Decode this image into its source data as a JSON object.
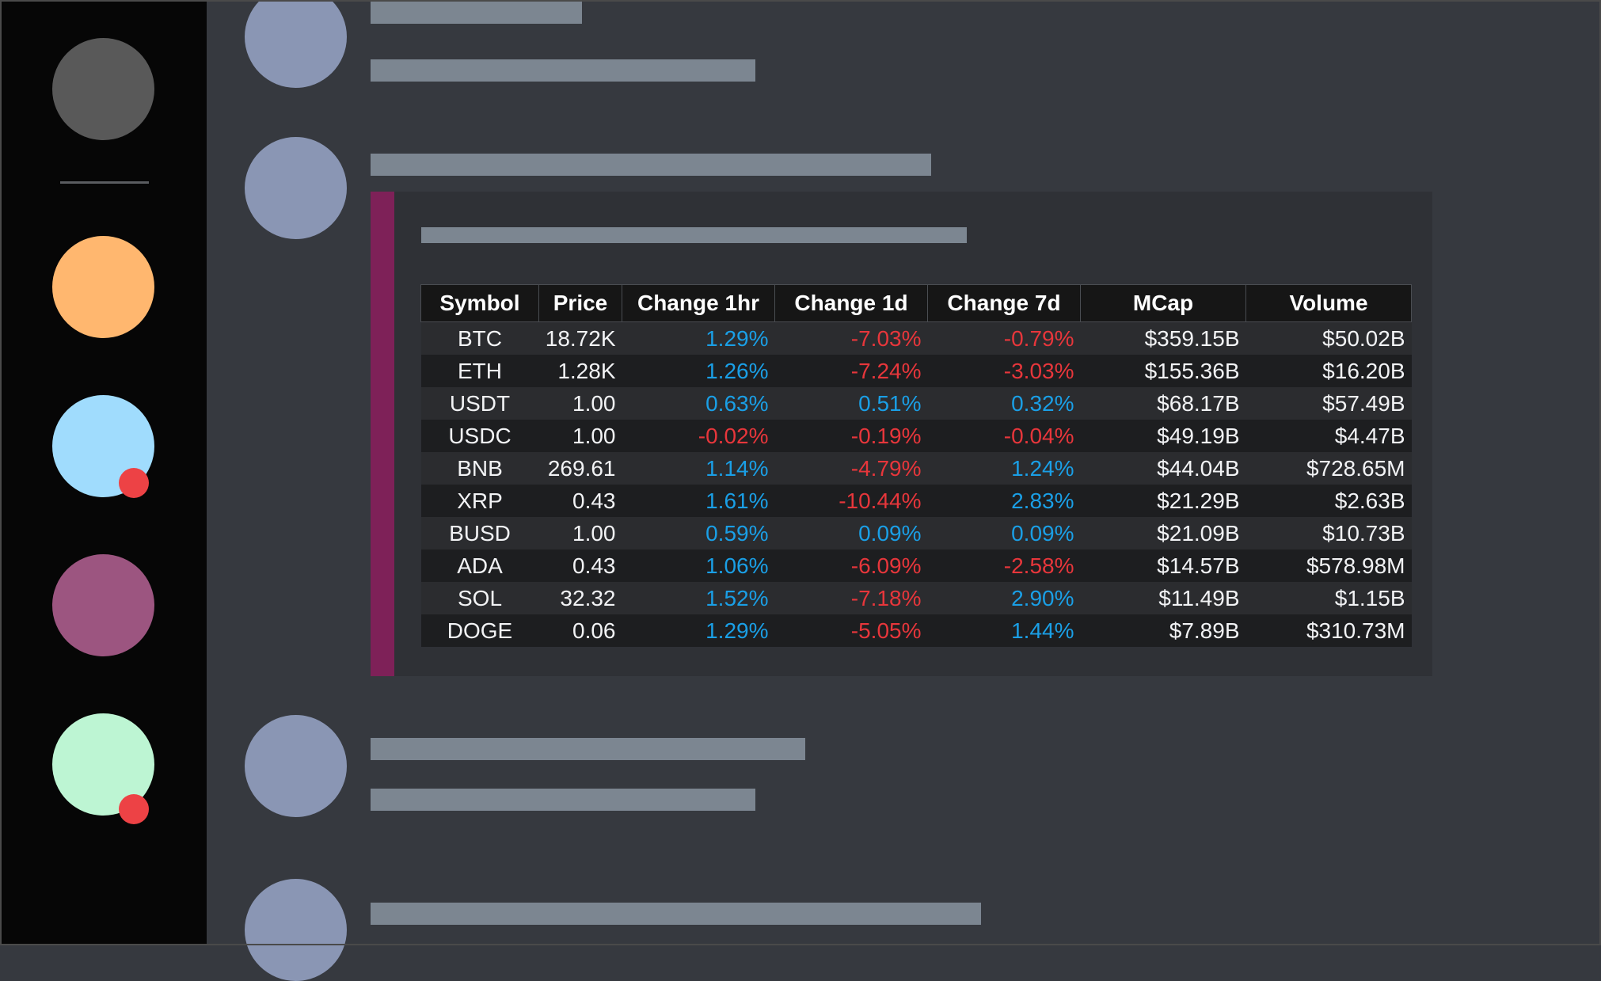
{
  "servers": [
    {
      "name": "server-home",
      "color": "#595959",
      "badge": false
    },
    {
      "name": "server-orange",
      "color": "#ffb76f",
      "badge": false
    },
    {
      "name": "server-blue",
      "color": "#a0dcfd",
      "badge": true
    },
    {
      "name": "server-purple",
      "color": "#9c5580",
      "badge": false
    },
    {
      "name": "server-green",
      "color": "#bdf5d3",
      "badge": true
    }
  ],
  "embed": {
    "accent_color": "#7e2158",
    "table": {
      "headers": [
        "Symbol",
        "Price",
        "Change 1hr",
        "Change 1d",
        "Change 7d",
        "MCap",
        "Volume"
      ],
      "rows": [
        [
          "BTC",
          "18.72K",
          "1.29%",
          "-7.03%",
          "-0.79%",
          "$359.15B",
          "$50.02B"
        ],
        [
          "ETH",
          "1.28K",
          "1.26%",
          "-7.24%",
          "-3.03%",
          "$155.36B",
          "$16.20B"
        ],
        [
          "USDT",
          "1.00",
          "0.63%",
          "0.51%",
          "0.32%",
          "$68.17B",
          "$57.49B"
        ],
        [
          "USDC",
          "1.00",
          "-0.02%",
          "-0.19%",
          "-0.04%",
          "$49.19B",
          "$4.47B"
        ],
        [
          "BNB",
          "269.61",
          "1.14%",
          "-4.79%",
          "1.24%",
          "$44.04B",
          "$728.65M"
        ],
        [
          "XRP",
          "0.43",
          "1.61%",
          "-10.44%",
          "2.83%",
          "$21.29B",
          "$2.63B"
        ],
        [
          "BUSD",
          "1.00",
          "0.59%",
          "0.09%",
          "0.09%",
          "$21.09B",
          "$10.73B"
        ],
        [
          "ADA",
          "0.43",
          "1.06%",
          "-6.09%",
          "-2.58%",
          "$14.57B",
          "$578.98M"
        ],
        [
          "SOL",
          "32.32",
          "1.52%",
          "-7.18%",
          "2.90%",
          "$11.49B",
          "$1.15B"
        ],
        [
          "DOGE",
          "0.06",
          "1.29%",
          "-5.05%",
          "1.44%",
          "$7.89B",
          "$310.73M"
        ]
      ]
    }
  },
  "colors": {
    "positive": "#1a9fe6",
    "negative": "#e7363b",
    "notification_badge": "#ed4245",
    "placeholder_avatar": "#8a96b4",
    "placeholder_text": "#7c8691"
  }
}
